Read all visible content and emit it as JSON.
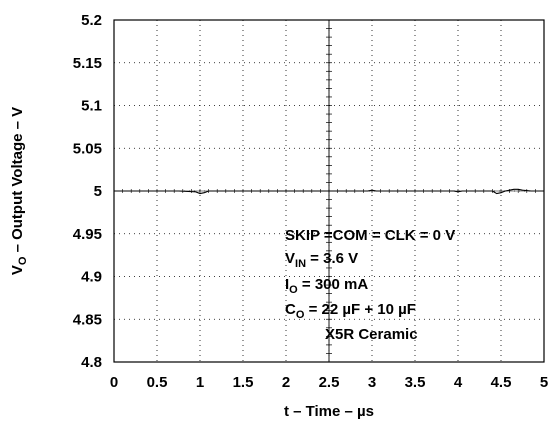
{
  "chart_data": {
    "type": "line",
    "title": "",
    "xlabel": "t – Time – µs",
    "ylabel_parts": {
      "main": "V",
      "sub": "O",
      "rest": " – Output Voltage – V"
    },
    "xlim": [
      0,
      5
    ],
    "ylim": [
      4.8,
      5.2
    ],
    "x_ticks": [
      "0",
      "0.5",
      "1",
      "1.5",
      "2",
      "2.5",
      "3",
      "3.5",
      "4",
      "4.5",
      "5"
    ],
    "y_ticks": [
      "4.8",
      "4.85",
      "4.9",
      "4.95",
      "5",
      "5.05",
      "5.1",
      "5.15",
      "5.2"
    ],
    "grid": "dotted",
    "series": [
      {
        "x": [
          0,
          0.25,
          0.5,
          0.75,
          0.95,
          1.0,
          1.05,
          1.1,
          1.25,
          1.5,
          1.75,
          2.0,
          2.25,
          2.5,
          2.75,
          2.95,
          3.0,
          3.05,
          3.25,
          3.5,
          3.75,
          3.95,
          4.0,
          4.05,
          4.25,
          4.4,
          4.45,
          4.5,
          4.55,
          4.65,
          4.7,
          4.75,
          4.85,
          5.0
        ],
        "values": [
          5.0,
          5.0,
          5.0,
          5.0,
          4.999,
          4.997,
          4.998,
          5.0,
          5.0,
          5.0,
          5.0,
          5.0,
          5.0,
          5.0,
          5.0,
          5.0,
          5.001,
          5.0,
          5.0,
          5.0,
          5.0,
          5.0,
          4.999,
          5.0,
          5.0,
          5.0,
          4.997,
          4.998,
          5.0,
          5.002,
          5.002,
          5.001,
          5.0,
          5.0
        ]
      }
    ],
    "annotations": [
      {
        "main": "SKIP =COM = CLK = 0 V",
        "sub": "",
        "rest": ""
      },
      {
        "main": "V",
        "sub": "IN",
        "rest": " = 3.6 V"
      },
      {
        "main": "I",
        "sub": "O",
        "rest": " = 300 mA"
      },
      {
        "main": "C",
        "sub": "O",
        "rest": " = 22 µF + 10 µF"
      },
      {
        "main": "X5R Ceramic",
        "sub": "",
        "rest": ""
      }
    ]
  }
}
